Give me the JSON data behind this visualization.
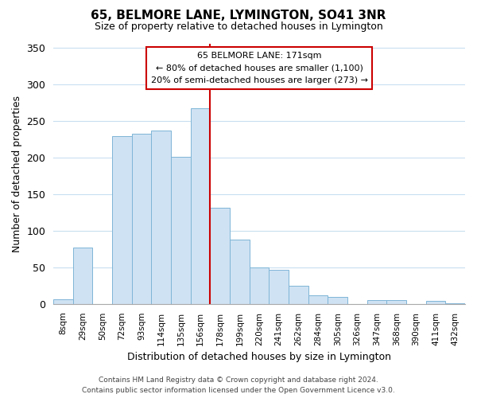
{
  "title": "65, BELMORE LANE, LYMINGTON, SO41 3NR",
  "subtitle": "Size of property relative to detached houses in Lymington",
  "xlabel": "Distribution of detached houses by size in Lymington",
  "ylabel": "Number of detached properties",
  "bar_labels": [
    "8sqm",
    "29sqm",
    "50sqm",
    "72sqm",
    "93sqm",
    "114sqm",
    "135sqm",
    "156sqm",
    "178sqm",
    "199sqm",
    "220sqm",
    "241sqm",
    "262sqm",
    "284sqm",
    "305sqm",
    "326sqm",
    "347sqm",
    "368sqm",
    "390sqm",
    "411sqm",
    "432sqm"
  ],
  "bar_heights": [
    6,
    77,
    0,
    229,
    232,
    237,
    201,
    267,
    131,
    88,
    50,
    46,
    25,
    12,
    10,
    0,
    5,
    5,
    0,
    4,
    1
  ],
  "bar_color": "#cfe2f3",
  "bar_edge_color": "#7eb5d6",
  "vline_color": "#cc0000",
  "vline_x_index": 8,
  "ann_line1": "65 BELMORE LANE: 171sqm",
  "ann_line2": "← 80% of detached houses are smaller (1,100)",
  "ann_line3": "20% of semi-detached houses are larger (273) →",
  "ylim": [
    0,
    355
  ],
  "yticks": [
    0,
    50,
    100,
    150,
    200,
    250,
    300,
    350
  ],
  "footer": "Contains HM Land Registry data © Crown copyright and database right 2024.\nContains public sector information licensed under the Open Government Licence v3.0.",
  "bg_color": "#ffffff",
  "grid_color": "#c8dff0"
}
